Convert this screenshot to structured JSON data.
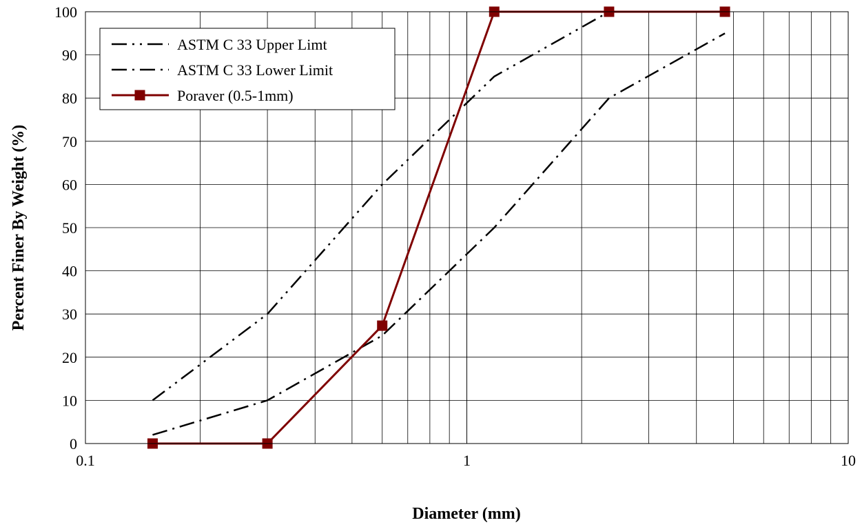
{
  "chart_data": {
    "type": "line",
    "x_scale": "log",
    "xlabel": "Diameter (mm)",
    "ylabel": "Percent Finer By Weight (%)",
    "xlim": [
      0.1,
      10
    ],
    "ylim": [
      0,
      100
    ],
    "x_ticks": [
      "0.1",
      "1",
      "10"
    ],
    "y_ticks": [
      "0",
      "10",
      "20",
      "30",
      "40",
      "50",
      "60",
      "70",
      "80",
      "90",
      "100"
    ],
    "grid": true,
    "legend_position": "top-left",
    "series": [
      {
        "name": "ASTM C 33 Upper Limt",
        "color": "#000000",
        "line_style": "dash-dot-dot",
        "marker": "none",
        "x": [
          0.15,
          0.3,
          0.6,
          1.18,
          2.36,
          4.75
        ],
        "y": [
          10,
          30,
          60,
          85,
          100,
          100
        ]
      },
      {
        "name": "ASTM C 33 Lower Limit",
        "color": "#000000",
        "line_style": "dash-dot",
        "marker": "none",
        "x": [
          0.15,
          0.3,
          0.6,
          1.18,
          2.36,
          4.75
        ],
        "y": [
          2,
          10,
          25,
          50,
          80,
          95
        ]
      },
      {
        "name": "Poraver (0.5-1mm)",
        "color": "#7f0000",
        "line_style": "solid",
        "marker": "square",
        "x": [
          0.15,
          0.3,
          0.6,
          1.18,
          2.36,
          4.75
        ],
        "y": [
          0,
          0,
          27.3,
          100,
          100,
          100
        ]
      }
    ]
  }
}
